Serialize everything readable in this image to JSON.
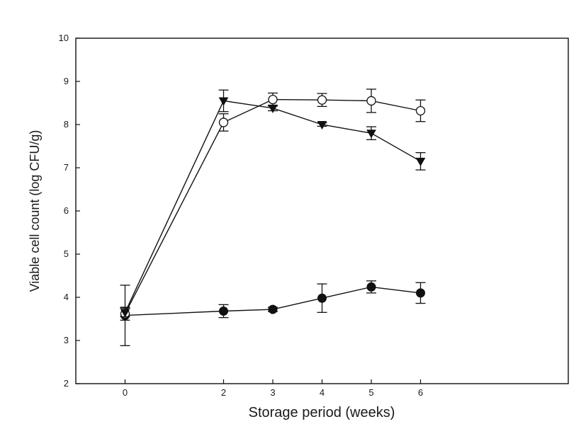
{
  "chart_data": {
    "type": "line",
    "title": "",
    "xlabel": "Storage period (weeks)",
    "ylabel": "Viable cell count (log CFU/g)",
    "xlim": [
      -1,
      9
    ],
    "ylim": [
      2,
      10
    ],
    "xticks": [
      0,
      2,
      3,
      4,
      5,
      6
    ],
    "yticks": [
      2,
      3,
      4,
      5,
      6,
      7,
      8,
      9,
      10
    ],
    "grid": false,
    "legend": "none",
    "series": [
      {
        "marker": "circle-filled",
        "color": "#111111",
        "x": [
          0,
          2,
          3,
          4,
          5,
          6
        ],
        "y": [
          3.58,
          3.68,
          3.72,
          3.98,
          4.24,
          4.1
        ],
        "err": [
          0.7,
          0.15,
          0.05,
          0.33,
          0.14,
          0.24
        ]
      },
      {
        "marker": "circle-open",
        "color": "#111111",
        "x": [
          0,
          2,
          3,
          4,
          5,
          6
        ],
        "y": [
          3.62,
          8.05,
          8.58,
          8.57,
          8.55,
          8.32
        ],
        "err": [
          0.15,
          0.2,
          0.15,
          0.15,
          0.27,
          0.25
        ]
      },
      {
        "marker": "triangle-down-filled",
        "color": "#111111",
        "x": [
          0,
          2,
          3,
          4,
          5,
          6
        ],
        "y": [
          3.65,
          8.55,
          8.38,
          8.0,
          7.8,
          7.15
        ],
        "err": [
          0.1,
          0.25,
          0.06,
          0.04,
          0.15,
          0.2
        ]
      }
    ]
  }
}
